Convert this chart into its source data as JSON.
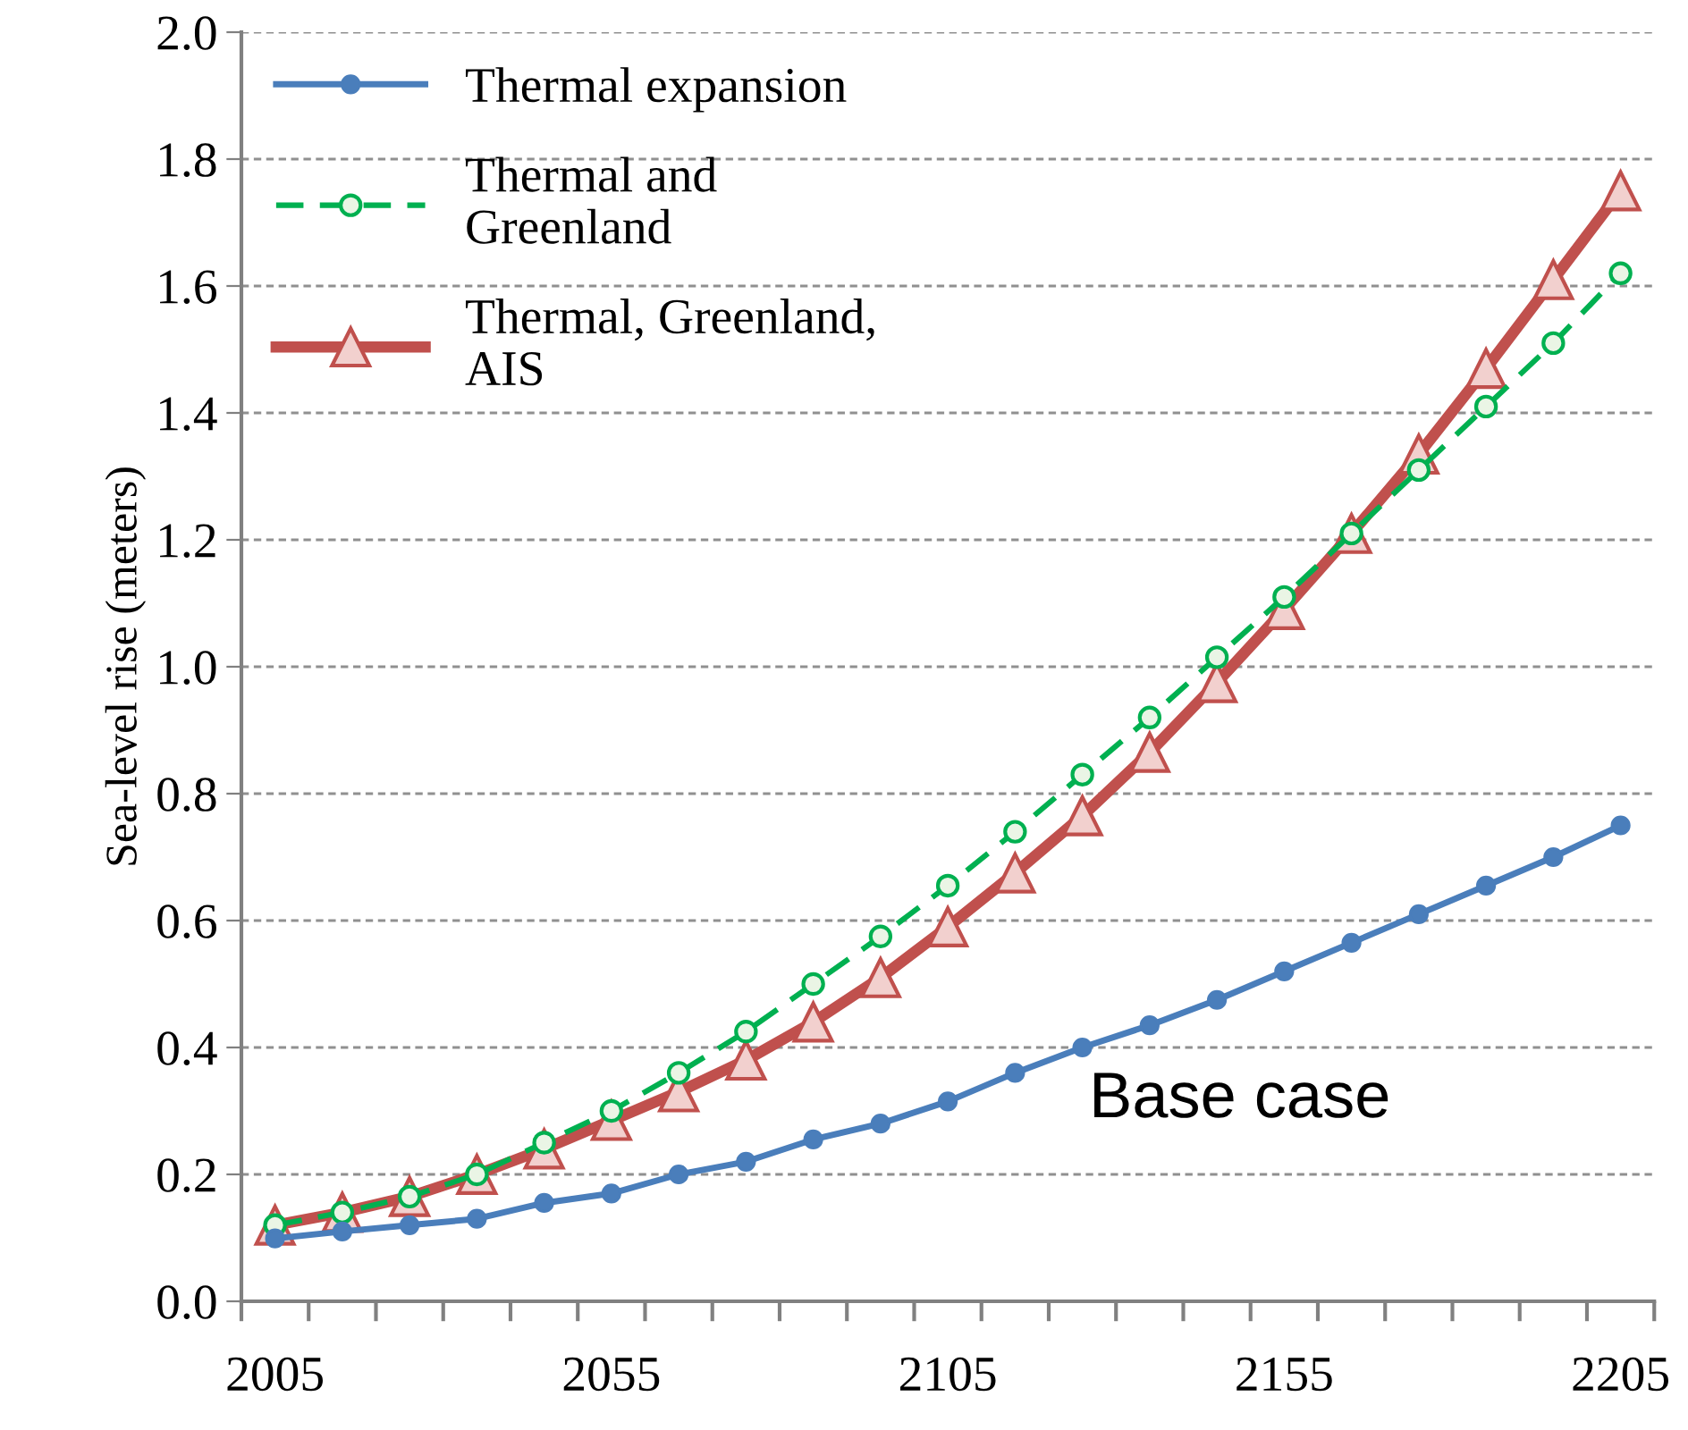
{
  "chart_data": {
    "type": "line",
    "ylabel": "Sea-level rise (meters)",
    "categories": [
      "2005",
      null,
      null,
      null,
      null,
      "2055",
      null,
      null,
      null,
      null,
      "2105",
      null,
      null,
      null,
      null,
      "2155",
      null,
      null,
      null,
      null,
      "2205"
    ],
    "series": [
      {
        "name": "Thermal expansion",
        "color": "#4a7ebb",
        "marker": "circle",
        "line_style": "solid",
        "values": [
          0.099,
          0.11,
          0.12,
          0.13,
          0.155,
          0.17,
          0.2,
          0.22,
          0.255,
          0.28,
          0.315,
          0.36,
          0.4,
          0.435,
          0.475,
          0.52,
          0.565,
          0.61,
          0.655,
          0.7,
          0.75
        ]
      },
      {
        "name": "Thermal and Greenland",
        "color": "#00b050",
        "marker": "circle",
        "line_style": "dashed",
        "values": [
          0.12,
          0.14,
          0.165,
          0.2,
          0.25,
          0.3,
          0.36,
          0.425,
          0.5,
          0.575,
          0.655,
          0.74,
          0.83,
          0.92,
          1.015,
          1.11,
          1.21,
          1.31,
          1.41,
          1.51,
          1.62
        ]
      },
      {
        "name": "Thermal, Greenland, AIS",
        "color": "#c0504d",
        "marker": "triangle",
        "line_style": "solid",
        "values": [
          0.12,
          0.14,
          0.165,
          0.2,
          0.24,
          0.285,
          0.33,
          0.38,
          0.44,
          0.51,
          0.59,
          0.675,
          0.765,
          0.865,
          0.975,
          1.09,
          1.21,
          1.335,
          1.47,
          1.61,
          1.75
        ]
      }
    ],
    "ylim": [
      0,
      2
    ],
    "yticks": [
      {
        "value": 0,
        "label": "0.0"
      },
      {
        "value": 0.2,
        "label": "0.2"
      },
      {
        "value": 0.4,
        "label": "0.4"
      },
      {
        "value": 0.6,
        "label": "0.6"
      },
      {
        "value": 0.8,
        "label": "0.8"
      },
      {
        "value": 1,
        "label": "1.0"
      },
      {
        "value": 1.2,
        "label": "1.2"
      },
      {
        "value": 1.4,
        "label": "1.4"
      },
      {
        "value": 1.6,
        "label": "1.6"
      },
      {
        "value": 1.8,
        "label": "1.8"
      },
      {
        "value": 2,
        "label": "2.0"
      }
    ],
    "grid": "y",
    "legend": "top left",
    "annotations": [
      "Base case"
    ]
  }
}
